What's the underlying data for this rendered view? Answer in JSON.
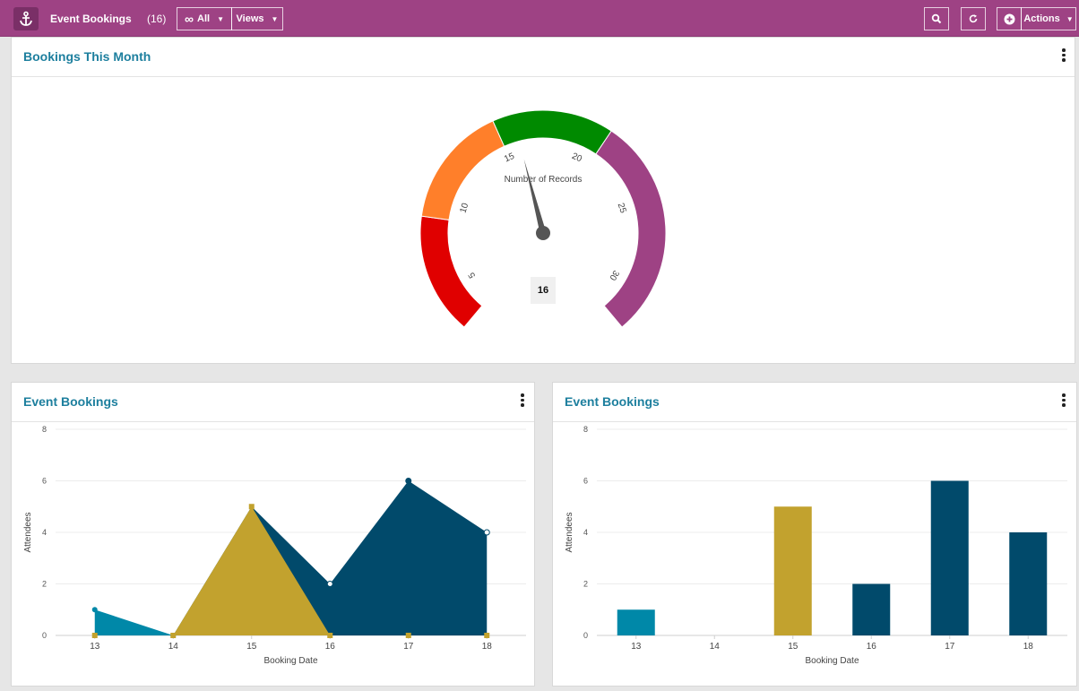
{
  "topbar": {
    "title": "Event Bookings",
    "count": "(16)",
    "all_label": "All",
    "views_label": "Views",
    "actions_label": "Actions"
  },
  "gauge_panel": {
    "title": "Bookings This Month",
    "center_label": "Number of Records",
    "value_display": "16",
    "value": 16,
    "min": 3,
    "max": 32,
    "ticks": [
      "5",
      "10",
      "15",
      "20",
      "25",
      "30"
    ],
    "bands": [
      {
        "from": 3,
        "to": 9,
        "color": "#e00000"
      },
      {
        "from": 9,
        "to": 15,
        "color": "#ff7f2a"
      },
      {
        "from": 15,
        "to": 21,
        "color": "#008a00"
      },
      {
        "from": 21,
        "to": 32,
        "color": "#9e4284"
      }
    ]
  },
  "area_panel": {
    "title": "Event Bookings"
  },
  "bar_panel": {
    "title": "Event Bookings"
  },
  "colors": {
    "teal": "#0088a8",
    "gold": "#c2a22e",
    "navy": "#014a6b",
    "topbar": "#9e4284"
  },
  "chart_data": [
    {
      "type": "area",
      "categories": [
        "13",
        "14",
        "15",
        "16",
        "17",
        "18"
      ],
      "series": [
        {
          "values": [
            1,
            0,
            0,
            0,
            0,
            0
          ],
          "color": "#0088a8"
        },
        {
          "values": [
            0,
            0,
            5,
            0,
            0,
            0
          ],
          "color": "#c2a22e"
        },
        {
          "values": [
            0,
            0,
            5,
            2,
            6,
            4
          ],
          "color": "#014a6b"
        }
      ],
      "xlabel": "Booking Date",
      "ylabel": "Attendees",
      "ylim": [
        0,
        8
      ],
      "yticks": [
        0,
        2,
        4,
        6,
        8
      ],
      "grid": true
    },
    {
      "type": "bar",
      "categories": [
        "13",
        "14",
        "15",
        "16",
        "17",
        "18"
      ],
      "values": [
        1,
        0,
        5,
        2,
        6,
        4
      ],
      "colors": [
        "#0088a8",
        "#0088a8",
        "#c2a22e",
        "#014a6b",
        "#014a6b",
        "#014a6b"
      ],
      "xlabel": "Booking Date",
      "ylabel": "Attendees",
      "ylim": [
        0,
        8
      ],
      "yticks": [
        0,
        2,
        4,
        6,
        8
      ],
      "grid": true
    }
  ]
}
